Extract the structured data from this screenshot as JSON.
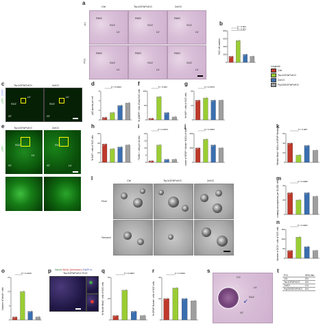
{
  "panels": {
    "a": {
      "label": "a",
      "cols": [
        "Ctrl",
        "Tsc1GFAPcKO",
        "2cKO"
      ],
      "rows": [
        "P7",
        "P21"
      ],
      "annot": [
        "RMS",
        "SVZ",
        "LV"
      ]
    },
    "b": {
      "label": "b"
    },
    "c": {
      "label": "c",
      "cols": [
        "Tsc1GFAPcKO",
        "2cKO"
      ],
      "marker": "pS6",
      "dapi": "DAPI",
      "annot": [
        "SVZ",
        "LV",
        "ST"
      ]
    },
    "d": {
      "label": "d"
    },
    "f": {
      "label": "f"
    },
    "g": {
      "label": "g"
    },
    "e": {
      "label": "e",
      "cols": [
        "Tsc1GFAPcKO",
        "2cKO"
      ],
      "marker": "pS6",
      "annot": [
        "SVZ",
        "LV",
        "ST"
      ]
    },
    "h": {
      "label": "h"
    },
    "i": {
      "label": "i"
    },
    "j": {
      "label": "j"
    },
    "k": {
      "label": "k"
    },
    "l": {
      "label": "l",
      "cols": [
        "Ctrl",
        "Tsc1GFAPcKO",
        "2cKO"
      ],
      "rows": [
        "First",
        "Second"
      ]
    },
    "m": {
      "label": "m"
    },
    "n": {
      "label": "n"
    },
    "o": {
      "label": "o"
    },
    "p": {
      "label": "p",
      "title_neun": "NeuN",
      "title_brdu": "BrdU (retention)",
      "title_dapi": "DAPI in",
      "title_geno": "Tsc1GFAPcKO SVZ"
    },
    "q": {
      "label": "q"
    },
    "r": {
      "label": "r"
    },
    "s": {
      "label": "s",
      "annot": [
        "CC",
        "LV",
        "SVZ",
        "ST"
      ]
    },
    "t": {
      "label": "t"
    }
  },
  "legend": {
    "title": "Legend:",
    "items": [
      {
        "label": "Ctrl",
        "color": "#c0392b"
      },
      {
        "label": "Tsc1GFAPcKO",
        "color": "#9acd32"
      },
      {
        "label": "2cKO",
        "color": "#3a6fb0"
      },
      {
        "label": "Fip200GFAPcKO",
        "color": "#9e9e9e"
      }
    ]
  },
  "chart_data": [
    {
      "panel": "b",
      "type": "bar",
      "ylabel": "SVZ cell number",
      "categories": [
        "Ctrl",
        "Tsc1",
        "2cKO",
        "Fip200"
      ],
      "values": [
        150,
        550,
        200,
        150
      ],
      "ylim": [
        0,
        800
      ],
      "yticks": [
        "0",
        "200",
        "400",
        "600",
        "800"
      ],
      "pvals": [
        "P < 0.001",
        "P < 0.001"
      ]
    },
    {
      "panel": "d",
      "type": "bar",
      "ylabel": "p62 puncta per cell",
      "categories": [
        "Ctrl",
        "Tsc1",
        "2cKO",
        "Fip200"
      ],
      "values": [
        0.5,
        1.5,
        3.0,
        3.5
      ],
      "ylim": [
        0,
        6
      ],
      "yticks": [
        "0",
        "2",
        "4",
        "6"
      ],
      "pvals": [
        "P = 0.0044"
      ]
    },
    {
      "panel": "f",
      "type": "bar",
      "ylabel": "% pS6RP+ cells of total SVZ cells",
      "categories": [
        "Ctrl",
        "Tsc1",
        "2cKO",
        "Fip200"
      ],
      "values": [
        5,
        80,
        25,
        10
      ],
      "ylim": [
        0,
        100
      ],
      "yticks": [
        "0",
        "50",
        "100"
      ],
      "pvals": [
        "P < 0.001"
      ]
    },
    {
      "panel": "g",
      "type": "bar",
      "ylabel": "% Ki67+ cells of SVZ cells",
      "categories": [
        "Ctrl",
        "Tsc1",
        "2cKO",
        "Fip200"
      ],
      "values": [
        17,
        19,
        17,
        17
      ],
      "ylim": [
        0,
        25
      ],
      "yticks": [
        "0",
        "10",
        "20"
      ],
      "pvals": [
        "P = 0.0154"
      ]
    },
    {
      "panel": "h",
      "type": "bar",
      "ylabel": "% Ki67+ cells of SVZ cells",
      "categories": [
        "Ctrl",
        "Tsc1",
        "2cKO",
        "Fip200"
      ],
      "values": [
        38,
        28,
        32,
        36
      ],
      "ylim": [
        0,
        60
      ],
      "yticks": [
        "0",
        "20",
        "40",
        "60"
      ],
      "pvals": []
    },
    {
      "panel": "i",
      "type": "bar",
      "ylabel": "TUNEL+ cells per section",
      "categories": [
        "Ctrl",
        "Tsc1",
        "2cKO",
        "Fip200"
      ],
      "values": [
        1,
        12,
        2,
        2
      ],
      "ylim": [
        0,
        20
      ],
      "yticks": [
        "0",
        "5",
        "10",
        "15",
        "20"
      ],
      "pvals": [
        "P = 0.0184"
      ]
    },
    {
      "panel": "j",
      "type": "bar",
      "ylabel": "Number of GFAP+ Nestin+ NSCs of total",
      "categories": [
        "Ctrl",
        "Tsc1",
        "2cKO",
        "Fip200"
      ],
      "values": [
        100,
        160,
        120,
        100
      ],
      "ylim": [
        0,
        200
      ],
      "yticks": [
        "0",
        "100",
        "200"
      ],
      "pvals": [
        "P = 0.0003"
      ]
    },
    {
      "panel": "k",
      "type": "bar",
      "ylabel": "% GFAP+Nestin+BrdU+ NSCs of GFAP+Nestin+ cells",
      "categories": [
        "Ctrl",
        "Tsc1",
        "2cKO",
        "Fip200"
      ],
      "values": [
        40,
        15,
        35,
        25
      ],
      "ylim": [
        0,
        60
      ],
      "yticks": [
        "0",
        "20",
        "40",
        "60"
      ],
      "pvals": [
        "P = 0.005"
      ]
    },
    {
      "panel": "m",
      "type": "bar",
      "ylabel": "Secondary neurospheres per 20,000 cells",
      "categories": [
        "Ctrl",
        "Tsc1",
        "2cKO",
        "Fip200"
      ],
      "values": [
        30,
        20,
        30,
        25
      ],
      "ylim": [
        0,
        40
      ],
      "yticks": [
        "0",
        "20",
        "40"
      ],
      "pvals": [
        "P = 0.0005"
      ]
    },
    {
      "panel": "n",
      "type": "bar",
      "ylabel": "Number of DCX+ cells of SVZ cells",
      "categories": [
        "Ctrl",
        "Tsc1",
        "2cKO",
        "Fip200"
      ],
      "values": [
        40,
        110,
        60,
        40
      ],
      "ylim": [
        0,
        150
      ],
      "yticks": [
        "0",
        "50",
        "100",
        "150"
      ],
      "pvals": [
        "P = 0.0001"
      ]
    },
    {
      "panel": "o",
      "type": "bar",
      "ylabel": "Number of NeuN+ cells",
      "categories": [
        "Ctrl",
        "Tsc1",
        "2cKO",
        "Fip200"
      ],
      "values": [
        1,
        10,
        3,
        1
      ],
      "ylim": [
        0,
        15
      ],
      "yticks": [
        "0",
        "5",
        "10",
        "15"
      ],
      "pvals": [
        "P = 0.0016"
      ]
    },
    {
      "panel": "q",
      "type": "bar",
      "ylabel": "% NeuN+BrdU+ cells of SVZ cells",
      "categories": [
        "Ctrl",
        "Tsc1",
        "2cKO",
        "Fip200"
      ],
      "values": [
        5,
        35,
        10,
        5
      ],
      "ylim": [
        0,
        50
      ],
      "yticks": [
        "0",
        "25",
        "50"
      ],
      "pvals": [
        "P = 0.0003"
      ]
    },
    {
      "panel": "r",
      "type": "bar",
      "ylabel": "% GFAP+Nestin+ cells of SVZ cells",
      "categories": [
        "Ctrl",
        "Tsc1",
        "2cKO",
        "Fip200"
      ],
      "values": [
        20,
        30,
        20,
        18
      ],
      "ylim": [
        0,
        40
      ],
      "yticks": [
        "0",
        "20",
        "40"
      ],
      "pvals": [
        "P = 0.0033"
      ]
    }
  ],
  "table_t": {
    "header": [
      "P21",
      "SEN-like"
    ],
    "rows": [
      [
        "Ctrl",
        "0/4"
      ],
      [
        "Tsc1GFAPcKO",
        "4/4"
      ],
      [
        "2cKO",
        "1/4"
      ],
      [
        "Fip200GFAPcKO",
        "0/4"
      ]
    ]
  }
}
